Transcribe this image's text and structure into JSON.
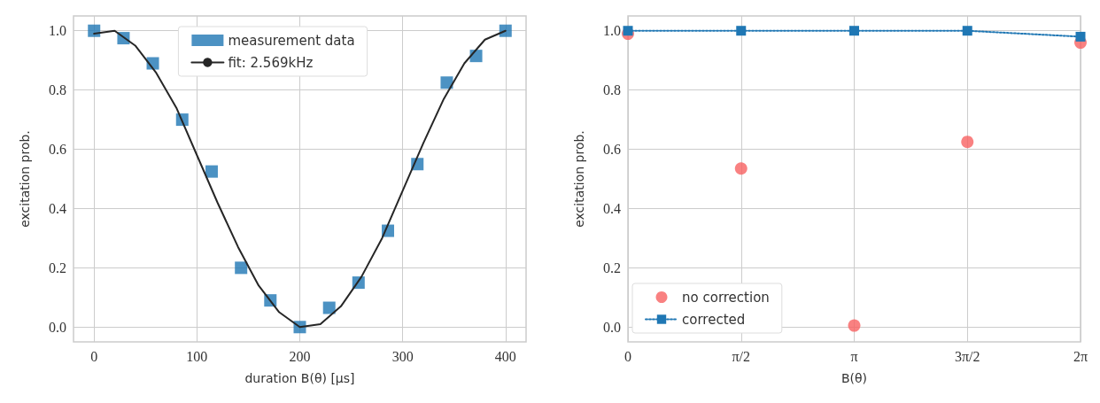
{
  "chart_data": [
    {
      "type": "scatter",
      "xlabel": "duration B(θ) [μs]",
      "ylabel": "excitation prob.",
      "xlim": [
        -20,
        420
      ],
      "xticks": [
        0,
        100,
        200,
        300,
        400
      ],
      "ylim": [
        -0.05,
        1.05
      ],
      "yticks": [
        {
          "value": 0,
          "label": "0.0"
        },
        {
          "value": 0.2,
          "label": "0.2"
        },
        {
          "value": 0.4,
          "label": "0.4"
        },
        {
          "value": 0.6,
          "label": "0.6"
        },
        {
          "value": 0.8,
          "label": "0.8"
        },
        {
          "value": 1,
          "label": "1.0"
        }
      ],
      "grid": true,
      "legend": "top",
      "series": [
        {
          "name": "measurement data",
          "type": "scatter",
          "marker": "square",
          "color": "#1f77b4",
          "x": [
            0,
            28.6,
            57.1,
            85.7,
            114.3,
            142.9,
            171.4,
            200,
            228.6,
            257.1,
            285.7,
            314.3,
            342.9,
            371.4,
            400
          ],
          "values": [
            1.0,
            0.975,
            0.89,
            0.7,
            0.525,
            0.2,
            0.09,
            0.0,
            0.065,
            0.15,
            0.325,
            0.55,
            0.825,
            0.915,
            1.0
          ]
        },
        {
          "name": "fit: 2.569kHz",
          "type": "line",
          "marker": "none",
          "line_style": "solid",
          "color": "#262626",
          "x": [
            0,
            20,
            40,
            60,
            80,
            100,
            120,
            140,
            160,
            180,
            200,
            220,
            240,
            260,
            280,
            300,
            320,
            340,
            360,
            380,
            400
          ],
          "values": [
            0.99,
            1.0,
            0.95,
            0.86,
            0.74,
            0.58,
            0.42,
            0.27,
            0.14,
            0.05,
            0.0,
            0.01,
            0.07,
            0.17,
            0.3,
            0.46,
            0.62,
            0.77,
            0.89,
            0.97,
            1.0
          ]
        }
      ]
    },
    {
      "type": "scatter",
      "xlabel": "B(θ)",
      "ylabel": "excitation prob.",
      "categories": [
        "0",
        "π/2",
        "π",
        "3π/2",
        "2π"
      ],
      "ylim": [
        -0.05,
        1.05
      ],
      "yticks": [
        {
          "value": 0,
          "label": "0.0"
        },
        {
          "value": 0.2,
          "label": "0.2"
        },
        {
          "value": 0.4,
          "label": "0.4"
        },
        {
          "value": 0.6,
          "label": "0.6"
        },
        {
          "value": 0.8,
          "label": "0.8"
        },
        {
          "value": 1,
          "label": "1.0"
        }
      ],
      "grid": true,
      "legend": "bottom left",
      "series": [
        {
          "name": "no correction",
          "type": "scatter",
          "marker": "circle",
          "color": "#f76262",
          "values": [
            0.99,
            0.535,
            0.005,
            0.625,
            0.96
          ]
        },
        {
          "name": "corrected",
          "type": "line",
          "marker": "square",
          "line_style": "dotted",
          "color": "#1f77b4",
          "values": [
            1.0,
            1.0,
            1.0,
            1.0,
            0.98
          ]
        }
      ]
    }
  ]
}
